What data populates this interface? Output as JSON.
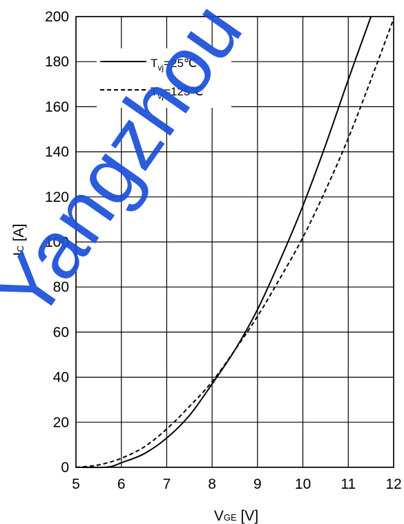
{
  "chart_data": {
    "type": "line",
    "xlabel": {
      "main": "V",
      "sub": "GE",
      "unit": " [V]"
    },
    "ylabel": {
      "main": "I",
      "sub": "C",
      "unit": " [A]"
    },
    "xlim": [
      5,
      12
    ],
    "ylim": [
      0,
      200
    ],
    "x_ticks": [
      "5",
      "6",
      "7",
      "8",
      "9",
      "10",
      "11",
      "12"
    ],
    "y_ticks": [
      "0",
      "20",
      "40",
      "60",
      "80",
      "100",
      "120",
      "140",
      "160",
      "180",
      "200"
    ],
    "grid": true,
    "legend_position": "top-left",
    "series": [
      {
        "name": {
          "main": "T",
          "sub": "vj",
          "rest": "=25℃"
        },
        "style": "solid",
        "x": [
          5.0,
          5.6,
          5.8,
          6.0,
          6.5,
          7.0,
          7.5,
          8.0,
          8.5,
          9.0,
          9.5,
          10.0,
          10.5,
          11.0,
          11.5
        ],
        "y": [
          0,
          0,
          0.5,
          2,
          6,
          13,
          23,
          37,
          52,
          70,
          92,
          116,
          143,
          172,
          200
        ]
      },
      {
        "name": {
          "main": "T",
          "sub": "vj",
          "rest": "=125℃"
        },
        "style": "dashed",
        "x": [
          5.0,
          5.3,
          5.6,
          6.0,
          6.5,
          7.0,
          7.5,
          8.0,
          8.5,
          9.0,
          9.5,
          10.0,
          10.5,
          11.0,
          11.5,
          12.0
        ],
        "y": [
          0,
          0.5,
          1.5,
          4,
          9,
          17,
          27,
          38,
          52,
          67,
          84,
          102,
          123,
          146,
          172,
          199
        ]
      }
    ]
  },
  "watermark": {
    "text": "Yangzhou Taixin",
    "color": "#1a4fd8"
  }
}
